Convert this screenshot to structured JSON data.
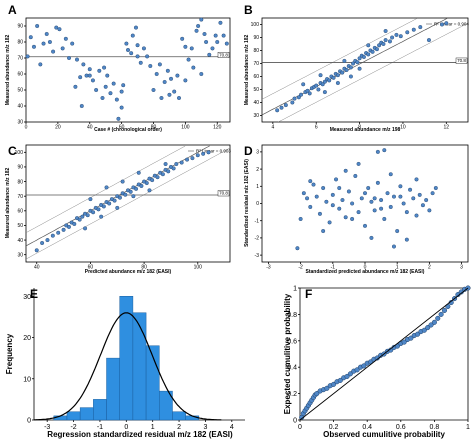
{
  "colors": {
    "point_fill": "#4f86c6",
    "point_stroke": "#1f3f66",
    "bar_fill": "#2f8fe0",
    "bar_stroke": "#1a5fa0",
    "ref_line": "#555555",
    "band_line": "#888888",
    "curve": "#000000",
    "pp_fill": "#4f86c6"
  },
  "chart_data": [
    {
      "panel": "A",
      "type": "scatter",
      "xlabel": "Case # (chronological order)",
      "ylabel": "Measured abundance m/z 182",
      "xticks": [
        0,
        20,
        40,
        60,
        80,
        100,
        120
      ],
      "yticks": [
        30,
        40,
        50,
        60,
        70,
        80,
        90
      ],
      "xlim": [
        0,
        128
      ],
      "ylim": [
        30,
        95
      ],
      "ref_y": 70.8,
      "ref_label": "70.8",
      "points": [
        [
          1,
          71
        ],
        [
          3,
          83
        ],
        [
          5,
          77
        ],
        [
          7,
          90
        ],
        [
          9,
          66
        ],
        [
          11,
          79
        ],
        [
          13,
          85
        ],
        [
          15,
          80
        ],
        [
          17,
          74
        ],
        [
          19,
          89
        ],
        [
          21,
          88
        ],
        [
          23,
          76
        ],
        [
          25,
          82
        ],
        [
          27,
          70
        ],
        [
          29,
          79
        ],
        [
          31,
          52
        ],
        [
          32,
          69
        ],
        [
          34,
          58
        ],
        [
          36,
          66
        ],
        [
          38,
          59
        ],
        [
          40,
          63
        ],
        [
          42,
          56
        ],
        [
          44,
          50
        ],
        [
          46,
          62
        ],
        [
          48,
          45
        ],
        [
          49,
          64
        ],
        [
          51,
          59
        ],
        [
          53,
          48
        ],
        [
          55,
          54
        ],
        [
          57,
          44
        ],
        [
          58,
          32
        ],
        [
          60,
          39
        ],
        [
          61,
          53
        ],
        [
          63,
          79
        ],
        [
          64,
          75
        ],
        [
          66,
          73
        ],
        [
          67,
          84
        ],
        [
          69,
          89
        ],
        [
          70,
          78
        ],
        [
          72,
          67
        ],
        [
          74,
          76
        ],
        [
          76,
          71
        ],
        [
          78,
          65
        ],
        [
          80,
          50
        ],
        [
          82,
          60
        ],
        [
          84,
          66
        ],
        [
          85,
          45
        ],
        [
          87,
          55
        ],
        [
          89,
          62
        ],
        [
          91,
          57
        ],
        [
          93,
          49
        ],
        [
          95,
          59
        ],
        [
          96,
          45
        ],
        [
          98,
          82
        ],
        [
          100,
          77
        ],
        [
          102,
          69
        ],
        [
          104,
          76
        ],
        [
          105,
          64
        ],
        [
          107,
          87
        ],
        [
          108,
          90
        ],
        [
          110,
          94
        ],
        [
          112,
          85
        ],
        [
          113,
          80
        ],
        [
          115,
          72
        ],
        [
          117,
          76
        ],
        [
          119,
          84
        ],
        [
          120,
          80
        ],
        [
          122,
          92
        ],
        [
          124,
          84
        ],
        [
          126,
          79
        ],
        [
          110,
          60
        ],
        [
          100,
          56
        ],
        [
          90,
          47
        ],
        [
          70,
          71
        ],
        [
          50,
          52
        ],
        [
          60,
          49
        ],
        [
          40,
          59
        ],
        [
          35,
          40
        ]
      ]
    },
    {
      "panel": "B",
      "type": "scatter",
      "xlabel": "Measured abundance m/z 198",
      "ylabel": "Measured abundance m/z 182",
      "xticks": [
        4,
        6,
        8,
        10,
        12
      ],
      "yticks": [
        30,
        40,
        50,
        60,
        70,
        80,
        90,
        100
      ],
      "xlim": [
        3.5,
        13
      ],
      "ylim": [
        25,
        105
      ],
      "ref_y": 70.8,
      "ref_label": "70.8",
      "legend": "R² Linear = 0.904",
      "fit": {
        "slope": 8.7,
        "intercept": 0,
        "band": 12
      },
      "points": [
        [
          4.2,
          34
        ],
        [
          4.4,
          36
        ],
        [
          4.6,
          38
        ],
        [
          4.9,
          40
        ],
        [
          5.0,
          43
        ],
        [
          5.2,
          44
        ],
        [
          5.3,
          46
        ],
        [
          5.5,
          48
        ],
        [
          5.6,
          49
        ],
        [
          5.7,
          47
        ],
        [
          5.8,
          51
        ],
        [
          5.9,
          52
        ],
        [
          6.0,
          53
        ],
        [
          6.1,
          50
        ],
        [
          6.2,
          55
        ],
        [
          6.3,
          54
        ],
        [
          6.4,
          56
        ],
        [
          6.5,
          58
        ],
        [
          6.6,
          57
        ],
        [
          6.7,
          60
        ],
        [
          6.8,
          59
        ],
        [
          6.9,
          62
        ],
        [
          7.0,
          61
        ],
        [
          7.1,
          64
        ],
        [
          7.2,
          63
        ],
        [
          7.3,
          66
        ],
        [
          7.4,
          65
        ],
        [
          7.5,
          68
        ],
        [
          7.6,
          67
        ],
        [
          7.7,
          70
        ],
        [
          7.8,
          72
        ],
        [
          7.9,
          71
        ],
        [
          8.0,
          74
        ],
        [
          8.1,
          76
        ],
        [
          8.2,
          75
        ],
        [
          8.3,
          78
        ],
        [
          8.4,
          77
        ],
        [
          8.5,
          80
        ],
        [
          8.6,
          79
        ],
        [
          8.7,
          82
        ],
        [
          8.8,
          81
        ],
        [
          8.9,
          84
        ],
        [
          9.0,
          86
        ],
        [
          9.1,
          85
        ],
        [
          9.2,
          88
        ],
        [
          9.4,
          87
        ],
        [
          9.5,
          90
        ],
        [
          9.7,
          92
        ],
        [
          9.9,
          91
        ],
        [
          10.2,
          94
        ],
        [
          10.5,
          96
        ],
        [
          10.8,
          98
        ],
        [
          11.2,
          88
        ],
        [
          11.8,
          100
        ],
        [
          12.0,
          101
        ],
        [
          6.4,
          48
        ],
        [
          7.0,
          55
        ],
        [
          7.6,
          60
        ],
        [
          8.0,
          66
        ],
        [
          5.4,
          54
        ],
        [
          6.2,
          61
        ],
        [
          7.3,
          72
        ],
        [
          8.4,
          84
        ],
        [
          9.2,
          95
        ]
      ]
    },
    {
      "panel": "C",
      "type": "scatter",
      "xlabel": "Predicted abundance m/z 182 (EASI)",
      "ylabel": "Measured abundance m/z 182",
      "xticks": [
        40,
        60,
        80,
        100
      ],
      "yticks": [
        30,
        40,
        50,
        60,
        70,
        80,
        90,
        100
      ],
      "xlim": [
        36,
        112
      ],
      "ylim": [
        25,
        105
      ],
      "ref_y": 70.8,
      "ref_label": "70.8",
      "legend": "R² Linear = 0.903",
      "fit": {
        "slope": 1,
        "intercept": 0,
        "band": 9
      },
      "points": [
        [
          40,
          33
        ],
        [
          42,
          38
        ],
        [
          44,
          40
        ],
        [
          46,
          43
        ],
        [
          48,
          45
        ],
        [
          50,
          47
        ],
        [
          51,
          50
        ],
        [
          52,
          49
        ],
        [
          53,
          52
        ],
        [
          54,
          51
        ],
        [
          55,
          55
        ],
        [
          56,
          54
        ],
        [
          57,
          56
        ],
        [
          58,
          58
        ],
        [
          59,
          57
        ],
        [
          60,
          60
        ],
        [
          61,
          59
        ],
        [
          62,
          62
        ],
        [
          63,
          61
        ],
        [
          64,
          64
        ],
        [
          65,
          63
        ],
        [
          66,
          66
        ],
        [
          67,
          65
        ],
        [
          68,
          68
        ],
        [
          69,
          67
        ],
        [
          70,
          70
        ],
        [
          71,
          69
        ],
        [
          72,
          72
        ],
        [
          73,
          71
        ],
        [
          74,
          74
        ],
        [
          75,
          73
        ],
        [
          76,
          76
        ],
        [
          77,
          75
        ],
        [
          78,
          78
        ],
        [
          79,
          77
        ],
        [
          80,
          80
        ],
        [
          81,
          79
        ],
        [
          82,
          82
        ],
        [
          83,
          81
        ],
        [
          84,
          84
        ],
        [
          85,
          83
        ],
        [
          86,
          86
        ],
        [
          87,
          85
        ],
        [
          88,
          88
        ],
        [
          89,
          87
        ],
        [
          90,
          90
        ],
        [
          91,
          89
        ],
        [
          92,
          92
        ],
        [
          94,
          93
        ],
        [
          96,
          95
        ],
        [
          98,
          96
        ],
        [
          100,
          98
        ],
        [
          102,
          99
        ],
        [
          104,
          100
        ],
        [
          58,
          48
        ],
        [
          64,
          56
        ],
        [
          70,
          62
        ],
        [
          76,
          70
        ],
        [
          82,
          74
        ],
        [
          88,
          92
        ],
        [
          66,
          76
        ],
        [
          72,
          80
        ],
        [
          78,
          86
        ],
        [
          60,
          68
        ]
      ]
    },
    {
      "panel": "D",
      "type": "scatter",
      "xlabel": "Standardized predicted abundance m/z 182 (EASI)",
      "ylabel": "Standardized residual m/z 182 (EASI)",
      "xticks": [
        -3,
        -2,
        -1,
        0,
        1,
        2,
        3
      ],
      "yticks": [
        -3,
        -2,
        -1,
        0,
        1,
        2,
        3
      ],
      "xlim": [
        -3.2,
        3.2
      ],
      "ylim": [
        -3.4,
        3.4
      ],
      "points": [
        [
          -2.1,
          -2.6
        ],
        [
          -2.0,
          -0.9
        ],
        [
          -1.9,
          0.6
        ],
        [
          -1.8,
          0.3
        ],
        [
          -1.7,
          -0.2
        ],
        [
          -1.6,
          1.1
        ],
        [
          -1.5,
          0.4
        ],
        [
          -1.4,
          -0.6
        ],
        [
          -1.3,
          0.9
        ],
        [
          -1.2,
          0.1
        ],
        [
          -1.1,
          -1.1
        ],
        [
          -1.0,
          0.5
        ],
        [
          -0.9,
          1.4
        ],
        [
          -0.8,
          -0.3
        ],
        [
          -0.7,
          0.2
        ],
        [
          -0.6,
          -0.8
        ],
        [
          -0.5,
          0.7
        ],
        [
          -0.4,
          0.0
        ],
        [
          -0.3,
          1.6
        ],
        [
          -0.2,
          -0.5
        ],
        [
          -0.1,
          0.3
        ],
        [
          0.0,
          -1.3
        ],
        [
          0.1,
          0.9
        ],
        [
          0.2,
          0.1
        ],
        [
          0.3,
          -0.4
        ],
        [
          0.4,
          1.2
        ],
        [
          0.5,
          0.2
        ],
        [
          0.6,
          -0.9
        ],
        [
          0.7,
          0.6
        ],
        [
          0.8,
          -0.2
        ],
        [
          0.9,
          0.4
        ],
        [
          1.0,
          -1.6
        ],
        [
          1.1,
          1.0
        ],
        [
          1.2,
          0.0
        ],
        [
          1.3,
          -0.5
        ],
        [
          1.4,
          0.8
        ],
        [
          1.5,
          0.3
        ],
        [
          1.6,
          -0.7
        ],
        [
          1.7,
          0.5
        ],
        [
          1.8,
          -0.1
        ],
        [
          1.9,
          0.2
        ],
        [
          2.0,
          -0.4
        ],
        [
          2.1,
          0.6
        ],
        [
          2.2,
          0.9
        ],
        [
          0.4,
          3.0
        ],
        [
          0.6,
          3.1
        ],
        [
          -0.6,
          1.9
        ],
        [
          0.2,
          -2.0
        ],
        [
          -1.3,
          -1.6
        ],
        [
          1.3,
          -2.1
        ],
        [
          0.9,
          -2.5
        ],
        [
          -0.2,
          2.3
        ],
        [
          1.6,
          1.4
        ],
        [
          -1.7,
          1.3
        ],
        [
          0.0,
          0.6
        ],
        [
          -0.8,
          0.9
        ],
        [
          0.5,
          -0.3
        ],
        [
          1.1,
          0.4
        ],
        [
          -0.4,
          -0.9
        ],
        [
          0.8,
          1.7
        ],
        [
          -1.0,
          -0.1
        ],
        [
          0.3,
          0.3
        ]
      ]
    },
    {
      "panel": "E",
      "type": "bar",
      "xlabel": "Regression standardized residual m/z 182 (EASI)",
      "ylabel": "Frequency",
      "xticks": [
        -3,
        -2,
        -1,
        0,
        1,
        2,
        3,
        4
      ],
      "yticks": [
        0,
        10,
        20,
        30
      ],
      "xlim": [
        -3.5,
        4.5
      ],
      "ylim": [
        0,
        32
      ],
      "bin_edges": [
        -2.75,
        -2.25,
        -1.75,
        -1.25,
        -0.75,
        -0.25,
        0.25,
        0.75,
        1.25,
        1.75,
        2.25,
        2.75
      ],
      "values": [
        1,
        2,
        3,
        5,
        15,
        30,
        26,
        18,
        7,
        2,
        1
      ],
      "normal_curve": {
        "mean": 0,
        "sd": 0.98,
        "peak": 26
      }
    },
    {
      "panel": "F",
      "type": "scatter",
      "xlabel": "Observed cumulitive probability",
      "ylabel": "Expected cumulitive probability",
      "xticks": [
        0.0,
        0.2,
        0.4,
        0.6,
        0.8,
        1.0
      ],
      "yticks": [
        0.0,
        0.2,
        0.4,
        0.6,
        0.8,
        1.0
      ],
      "xlim": [
        0,
        1
      ],
      "ylim": [
        0,
        1
      ],
      "points": [
        [
          0.01,
          0.02
        ],
        [
          0.02,
          0.05
        ],
        [
          0.03,
          0.07
        ],
        [
          0.04,
          0.09
        ],
        [
          0.05,
          0.11
        ],
        [
          0.06,
          0.13
        ],
        [
          0.07,
          0.15
        ],
        [
          0.08,
          0.17
        ],
        [
          0.09,
          0.19
        ],
        [
          0.1,
          0.2
        ],
        [
          0.12,
          0.22
        ],
        [
          0.14,
          0.23
        ],
        [
          0.16,
          0.24
        ],
        [
          0.18,
          0.26
        ],
        [
          0.2,
          0.27
        ],
        [
          0.22,
          0.29
        ],
        [
          0.24,
          0.3
        ],
        [
          0.26,
          0.32
        ],
        [
          0.28,
          0.33
        ],
        [
          0.3,
          0.35
        ],
        [
          0.32,
          0.37
        ],
        [
          0.34,
          0.38
        ],
        [
          0.36,
          0.4
        ],
        [
          0.38,
          0.41
        ],
        [
          0.4,
          0.43
        ],
        [
          0.42,
          0.44
        ],
        [
          0.44,
          0.46
        ],
        [
          0.46,
          0.47
        ],
        [
          0.48,
          0.49
        ],
        [
          0.5,
          0.5
        ],
        [
          0.52,
          0.52
        ],
        [
          0.54,
          0.53
        ],
        [
          0.56,
          0.55
        ],
        [
          0.58,
          0.56
        ],
        [
          0.6,
          0.58
        ],
        [
          0.62,
          0.59
        ],
        [
          0.64,
          0.61
        ],
        [
          0.66,
          0.62
        ],
        [
          0.68,
          0.64
        ],
        [
          0.7,
          0.65
        ],
        [
          0.72,
          0.67
        ],
        [
          0.74,
          0.68
        ],
        [
          0.76,
          0.7
        ],
        [
          0.78,
          0.72
        ],
        [
          0.8,
          0.74
        ],
        [
          0.82,
          0.77
        ],
        [
          0.84,
          0.8
        ],
        [
          0.86,
          0.83
        ],
        [
          0.88,
          0.86
        ],
        [
          0.9,
          0.89
        ],
        [
          0.92,
          0.92
        ],
        [
          0.94,
          0.95
        ],
        [
          0.96,
          0.97
        ],
        [
          0.98,
          0.99
        ],
        [
          1.0,
          1.0
        ]
      ]
    }
  ]
}
